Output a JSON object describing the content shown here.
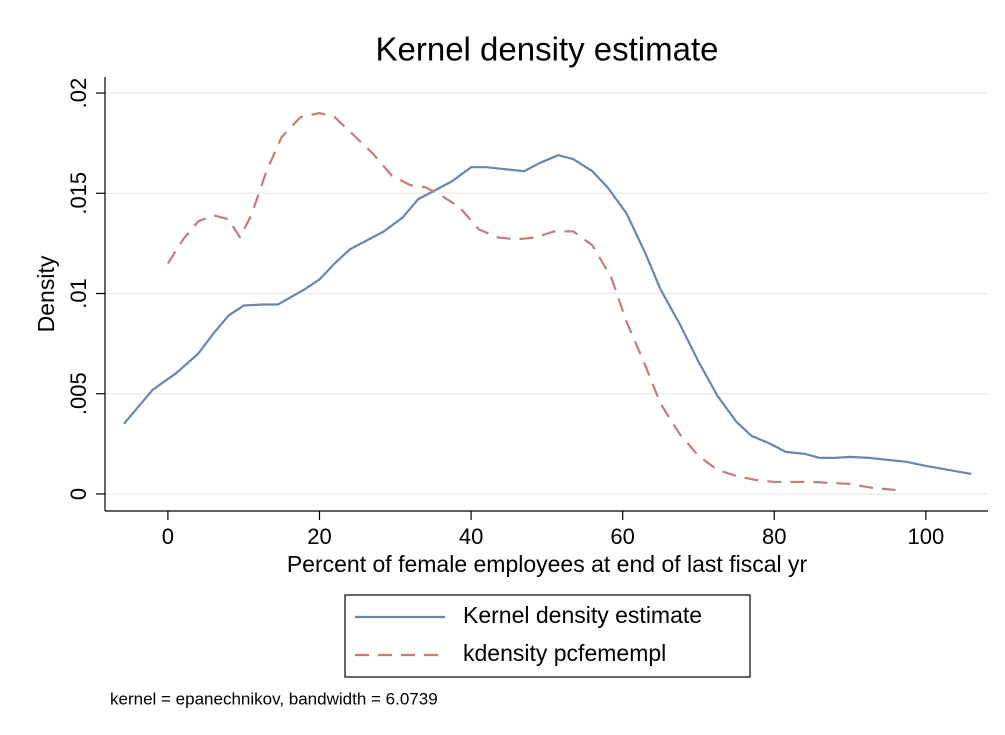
{
  "chart_data": {
    "type": "line",
    "title": "Kernel density estimate",
    "xlabel": "Percent of female employees at end of last fiscal yr",
    "ylabel": "Density",
    "note": "kernel = epanechnikov, bandwidth = 6.0739",
    "xlim": [
      -8.3,
      108.2
    ],
    "ylim": [
      -0.00085,
      0.0208
    ],
    "xticks": [
      0,
      20,
      40,
      60,
      80,
      100
    ],
    "yticks": [
      0,
      {
        "value": 0.005,
        "label": ".005"
      },
      {
        "value": 0.01,
        "label": ".01"
      },
      {
        "value": 0.015,
        "label": ".015"
      },
      {
        "value": 0.02,
        "label": ".02"
      }
    ],
    "grid": true,
    "series": [
      {
        "name": "Kernel density estimate",
        "color": "#6b86a8",
        "line_style": "solid",
        "x": [
          -5.8,
          -2,
          1,
          4,
          6,
          8,
          10,
          12.5,
          14.5,
          18,
          20,
          22,
          24,
          26.5,
          28.5,
          31,
          33,
          35,
          37.5,
          40,
          42,
          44.5,
          47,
          49,
          51.5,
          53.5,
          56,
          58,
          60.5,
          63,
          65,
          67.5,
          70,
          72.5,
          75,
          77,
          79.5,
          81.5,
          84,
          86,
          88,
          90,
          92.5,
          95,
          97.5,
          100,
          103,
          106
        ],
        "values": [
          0.0035,
          0.0052,
          0.006,
          0.007,
          0.008,
          0.0089,
          0.0094,
          0.00945,
          0.00945,
          0.0102,
          0.0107,
          0.0115,
          0.0122,
          0.0127,
          0.0131,
          0.0138,
          0.0147,
          0.0151,
          0.0156,
          0.0163,
          0.0163,
          0.0162,
          0.0161,
          0.0165,
          0.0169,
          0.0167,
          0.0161,
          0.0153,
          0.014,
          0.012,
          0.0102,
          0.0085,
          0.0066,
          0.0049,
          0.0036,
          0.0029,
          0.0025,
          0.0021,
          0.002,
          0.0018,
          0.0018,
          0.00185,
          0.0018,
          0.0017,
          0.0016,
          0.0014,
          0.0012,
          0.001
        ]
      },
      {
        "name": "kdensity pcfemempl",
        "color": "#c27d7d",
        "line_style": "dashed",
        "x": [
          0,
          2,
          4,
          6,
          8,
          9.5,
          11,
          13,
          15,
          17.5,
          20,
          22,
          24.5,
          27,
          29.5,
          32,
          34,
          36,
          38.5,
          41,
          43.5,
          46,
          48.5,
          51,
          53.5,
          56,
          58.5,
          60.5,
          63,
          65,
          67.5,
          70,
          72.5,
          75,
          77.5,
          80,
          85,
          90,
          93,
          96
        ],
        "values": [
          0.0115,
          0.0127,
          0.0136,
          0.0139,
          0.0137,
          0.0128,
          0.0139,
          0.0161,
          0.0178,
          0.0188,
          0.019,
          0.0188,
          0.0179,
          0.017,
          0.0159,
          0.0154,
          0.0153,
          0.0149,
          0.0143,
          0.0132,
          0.0128,
          0.0127,
          0.0128,
          0.0131,
          0.0131,
          0.0124,
          0.0108,
          0.0086,
          0.0064,
          0.0045,
          0.003,
          0.0019,
          0.0012,
          0.0009,
          0.0007,
          0.0006,
          0.0006,
          0.0005,
          0.0003,
          0.0002
        ]
      }
    ]
  }
}
